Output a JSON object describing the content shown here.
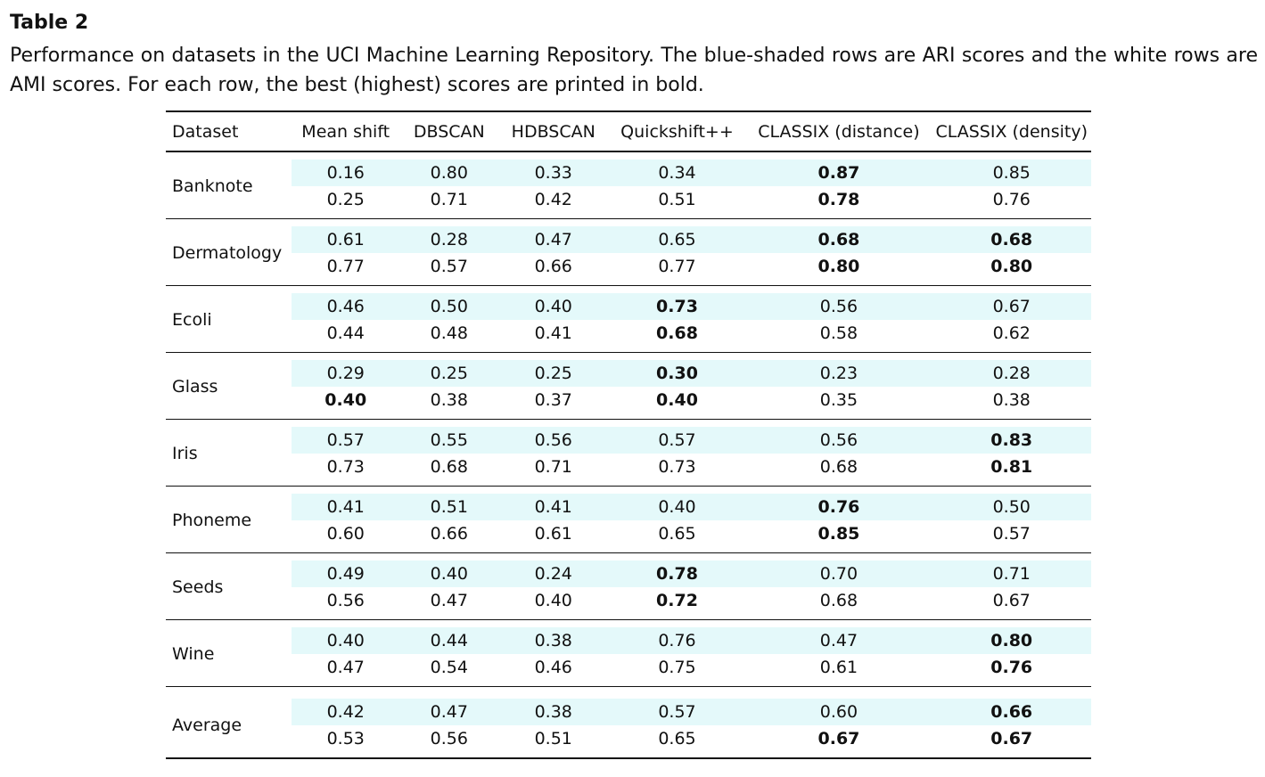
{
  "caption": {
    "title": "Table 2",
    "text": "Performance on datasets in the UCI Machine Learning Repository. The blue-shaded rows are ARI scores and the white rows are AMI scores. For each row, the best (highest) scores are printed in bold."
  },
  "table": {
    "headers": [
      "Dataset",
      "Mean shift",
      "DBSCAN",
      "HDBSCAN",
      "Quickshift++",
      "CLASSIX (distance)",
      "CLASSIX (density)"
    ],
    "shading_color": "#e4f9fa",
    "rows": [
      {
        "dataset": "Banknote",
        "ari": [
          "0.16",
          "0.80",
          "0.33",
          "0.34",
          "0.87",
          "0.85"
        ],
        "ari_bold": [
          4
        ],
        "ami": [
          "0.25",
          "0.71",
          "0.42",
          "0.51",
          "0.78",
          "0.76"
        ],
        "ami_bold": [
          4
        ]
      },
      {
        "dataset": "Dermatology",
        "ari": [
          "0.61",
          "0.28",
          "0.47",
          "0.65",
          "0.68",
          "0.68"
        ],
        "ari_bold": [
          4,
          5
        ],
        "ami": [
          "0.77",
          "0.57",
          "0.66",
          "0.77",
          "0.80",
          "0.80"
        ],
        "ami_bold": [
          4,
          5
        ]
      },
      {
        "dataset": "Ecoli",
        "ari": [
          "0.46",
          "0.50",
          "0.40",
          "0.73",
          "0.56",
          "0.67"
        ],
        "ari_bold": [
          3
        ],
        "ami": [
          "0.44",
          "0.48",
          "0.41",
          "0.68",
          "0.58",
          "0.62"
        ],
        "ami_bold": [
          3
        ]
      },
      {
        "dataset": "Glass",
        "ari": [
          "0.29",
          "0.25",
          "0.25",
          "0.30",
          "0.23",
          "0.28"
        ],
        "ari_bold": [
          3
        ],
        "ami": [
          "0.40",
          "0.38",
          "0.37",
          "0.40",
          "0.35",
          "0.38"
        ],
        "ami_bold": [
          0,
          3
        ]
      },
      {
        "dataset": "Iris",
        "ari": [
          "0.57",
          "0.55",
          "0.56",
          "0.57",
          "0.56",
          "0.83"
        ],
        "ari_bold": [
          5
        ],
        "ami": [
          "0.73",
          "0.68",
          "0.71",
          "0.73",
          "0.68",
          "0.81"
        ],
        "ami_bold": [
          5
        ]
      },
      {
        "dataset": "Phoneme",
        "ari": [
          "0.41",
          "0.51",
          "0.41",
          "0.40",
          "0.76",
          "0.50"
        ],
        "ari_bold": [
          4
        ],
        "ami": [
          "0.60",
          "0.66",
          "0.61",
          "0.65",
          "0.85",
          "0.57"
        ],
        "ami_bold": [
          4
        ]
      },
      {
        "dataset": "Seeds",
        "ari": [
          "0.49",
          "0.40",
          "0.24",
          "0.78",
          "0.70",
          "0.71"
        ],
        "ari_bold": [
          3
        ],
        "ami": [
          "0.56",
          "0.47",
          "0.40",
          "0.72",
          "0.68",
          "0.67"
        ],
        "ami_bold": [
          3
        ]
      },
      {
        "dataset": "Wine",
        "ari": [
          "0.40",
          "0.44",
          "0.38",
          "0.76",
          "0.47",
          "0.80"
        ],
        "ari_bold": [
          5
        ],
        "ami": [
          "0.47",
          "0.54",
          "0.46",
          "0.75",
          "0.61",
          "0.76"
        ],
        "ami_bold": [
          5
        ]
      }
    ],
    "average": {
      "dataset": "Average",
      "ari": [
        "0.42",
        "0.47",
        "0.38",
        "0.57",
        "0.60",
        "0.66"
      ],
      "ari_bold": [
        5
      ],
      "ami": [
        "0.53",
        "0.56",
        "0.51",
        "0.65",
        "0.67",
        "0.67"
      ],
      "ami_bold": [
        4,
        5
      ]
    }
  }
}
